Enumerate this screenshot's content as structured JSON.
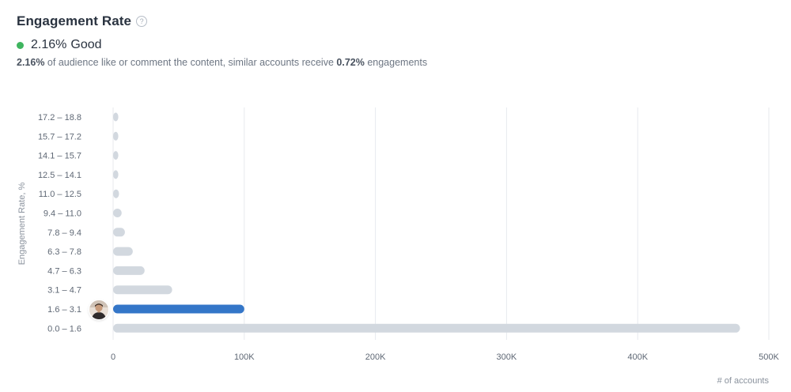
{
  "header": {
    "title": "Engagement Rate",
    "help_icon": "question-circle-icon",
    "status": {
      "value": "2.16%",
      "label": "Good",
      "color": "#3fb55f"
    },
    "description": {
      "rate": "2.16%",
      "text_middle": " of audience like or comment the content, similar accounts receive ",
      "similar": "0.72%",
      "text_end": " engagements"
    }
  },
  "chart_data": {
    "type": "bar",
    "orientation": "horizontal",
    "categories": [
      "0.0 – 1.6",
      "1.6 – 3.1",
      "3.1 – 4.7",
      "4.7 – 6.3",
      "6.3 – 7.8",
      "7.8 – 9.4",
      "9.4 – 11.0",
      "11.0 – 12.5",
      "12.5 – 14.1",
      "14.1 – 15.7",
      "15.7 – 17.2",
      "17.2 – 18.8"
    ],
    "values": [
      478000,
      100000,
      45000,
      24000,
      15000,
      9000,
      6500,
      4500,
      3500,
      3500,
      3500,
      3500
    ],
    "highlighted_category": "1.6 – 3.1",
    "xlim": [
      0,
      500000
    ],
    "xticks": [
      0,
      100000,
      200000,
      300000,
      400000,
      500000
    ],
    "xtick_labels": [
      "0",
      "100K",
      "200K",
      "300K",
      "400K",
      "500K"
    ],
    "xlabel": "# of accounts",
    "ylabel": "Engagement Rate, %",
    "grid": true,
    "colors": {
      "bar": "#d2d8df",
      "highlight": "#3476c8",
      "grid": "#e7eaee",
      "tick_text": "#5f6875",
      "axis_label": "#8a929d"
    }
  }
}
